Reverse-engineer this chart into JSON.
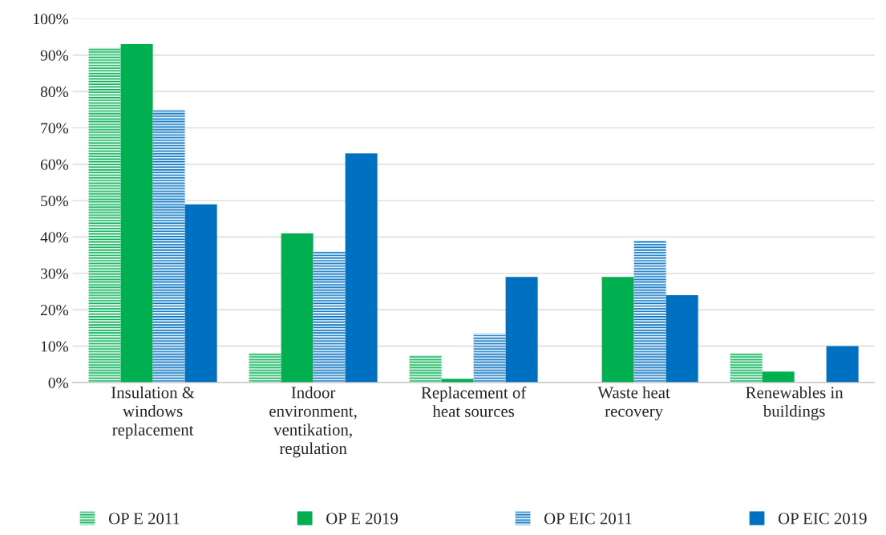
{
  "chart_data": {
    "type": "bar",
    "categories": [
      "Insulation &\nwindows\nreplacement",
      "Indoor\nenvironment,\nventikation,\nregulation",
      "Replacement of\nheat sources",
      "Waste heat\nrecovery",
      "Renewables in\nbuildings"
    ],
    "series": [
      {
        "name": "OP E 2011",
        "color": "#00b050",
        "values": [
          92,
          8,
          7.5,
          null,
          8
        ]
      },
      {
        "name": "OP E 2019",
        "color": "#00b050",
        "values": [
          93,
          41,
          1,
          29,
          3
        ]
      },
      {
        "name": "OP EIC 2011",
        "color": "#0070c0",
        "values": [
          75,
          36,
          13.5,
          39,
          null
        ]
      },
      {
        "name": "OP EIC 2019",
        "color": "#0070c0",
        "values": [
          49,
          63,
          29,
          24,
          10
        ]
      }
    ],
    "ylim": [
      0,
      100
    ],
    "yticks": [
      {
        "value": 0,
        "label": "0%"
      },
      {
        "value": 10,
        "label": "10%"
      },
      {
        "value": 20,
        "label": "20%"
      },
      {
        "value": 30,
        "label": "30%"
      },
      {
        "value": 40,
        "label": "40%"
      },
      {
        "value": 50,
        "label": "50%"
      },
      {
        "value": 60,
        "label": "60%"
      },
      {
        "value": 70,
        "label": "70%"
      },
      {
        "value": 80,
        "label": "80%"
      },
      {
        "value": 90,
        "label": "90%"
      },
      {
        "value": 100,
        "label": "100%"
      }
    ],
    "grid": "y",
    "legend": "bottom"
  }
}
